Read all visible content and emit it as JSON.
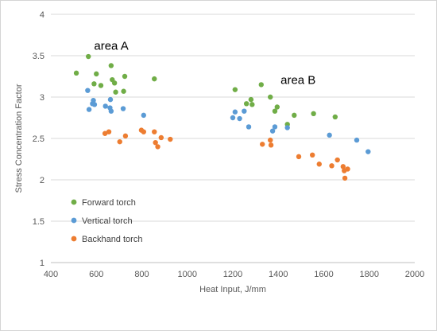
{
  "chart_data": {
    "type": "scatter",
    "title": "",
    "xlabel": "Heat Input, J/mm",
    "ylabel": "Stress Concentration Factor",
    "xlim": [
      400,
      2000
    ],
    "ylim": [
      1,
      4
    ],
    "xticks": [
      400,
      600,
      800,
      1000,
      1200,
      1400,
      1600,
      1800,
      2000
    ],
    "yticks": [
      1,
      1.5,
      2,
      2.5,
      3,
      3.5,
      4
    ],
    "xtick_labels": [
      "400",
      "600",
      "800",
      "1000",
      "1200",
      "1400",
      "1600",
      "1800",
      "2000"
    ],
    "ytick_labels": [
      "1",
      "1.5",
      "2",
      "2.5",
      "3",
      "3.5",
      "4"
    ],
    "grid": "horizontal major",
    "legend_position": "bottom-left",
    "annotations": [
      {
        "text": "area A",
        "x": 590,
        "y": 3.57
      },
      {
        "text": "area B",
        "x": 1410,
        "y": 3.16
      }
    ],
    "series": [
      {
        "name": "Forward torch",
        "color": "#70ad47",
        "points": [
          [
            512,
            3.29
          ],
          [
            565,
            3.49
          ],
          [
            590,
            3.16
          ],
          [
            600,
            3.28
          ],
          [
            620,
            3.14
          ],
          [
            665,
            3.38
          ],
          [
            670,
            3.21
          ],
          [
            680,
            3.17
          ],
          [
            685,
            3.06
          ],
          [
            720,
            3.07
          ],
          [
            725,
            3.25
          ],
          [
            855,
            3.22
          ],
          [
            1210,
            3.09
          ],
          [
            1260,
            2.92
          ],
          [
            1280,
            2.97
          ],
          [
            1285,
            2.91
          ],
          [
            1325,
            3.15
          ],
          [
            1365,
            3.0
          ],
          [
            1385,
            2.83
          ],
          [
            1395,
            2.88
          ],
          [
            1440,
            2.67
          ],
          [
            1470,
            2.78
          ],
          [
            1555,
            2.8
          ],
          [
            1650,
            2.76
          ]
        ]
      },
      {
        "name": "Vertical torch",
        "color": "#5b9bd5",
        "points": [
          [
            562,
            3.08
          ],
          [
            568,
            2.85
          ],
          [
            583,
            2.92
          ],
          [
            587,
            2.96
          ],
          [
            592,
            2.91
          ],
          [
            640,
            2.89
          ],
          [
            660,
            2.87
          ],
          [
            662,
            2.97
          ],
          [
            665,
            2.83
          ],
          [
            718,
            2.86
          ],
          [
            808,
            2.78
          ],
          [
            1200,
            2.75
          ],
          [
            1210,
            2.82
          ],
          [
            1230,
            2.74
          ],
          [
            1250,
            2.83
          ],
          [
            1270,
            2.64
          ],
          [
            1375,
            2.59
          ],
          [
            1385,
            2.64
          ],
          [
            1440,
            2.63
          ],
          [
            1625,
            2.54
          ],
          [
            1745,
            2.48
          ],
          [
            1795,
            2.34
          ]
        ]
      },
      {
        "name": "Backhand torch",
        "color": "#ed7d31",
        "points": [
          [
            638,
            2.56
          ],
          [
            655,
            2.58
          ],
          [
            703,
            2.46
          ],
          [
            728,
            2.53
          ],
          [
            798,
            2.6
          ],
          [
            808,
            2.58
          ],
          [
            855,
            2.58
          ],
          [
            860,
            2.45
          ],
          [
            870,
            2.4
          ],
          [
            885,
            2.51
          ],
          [
            925,
            2.49
          ],
          [
            1330,
            2.43
          ],
          [
            1365,
            2.48
          ],
          [
            1368,
            2.42
          ],
          [
            1490,
            2.28
          ],
          [
            1550,
            2.3
          ],
          [
            1580,
            2.19
          ],
          [
            1635,
            2.17
          ],
          [
            1660,
            2.24
          ],
          [
            1685,
            2.16
          ],
          [
            1690,
            2.11
          ],
          [
            1693,
            2.02
          ],
          [
            1705,
            2.13
          ]
        ]
      }
    ]
  }
}
